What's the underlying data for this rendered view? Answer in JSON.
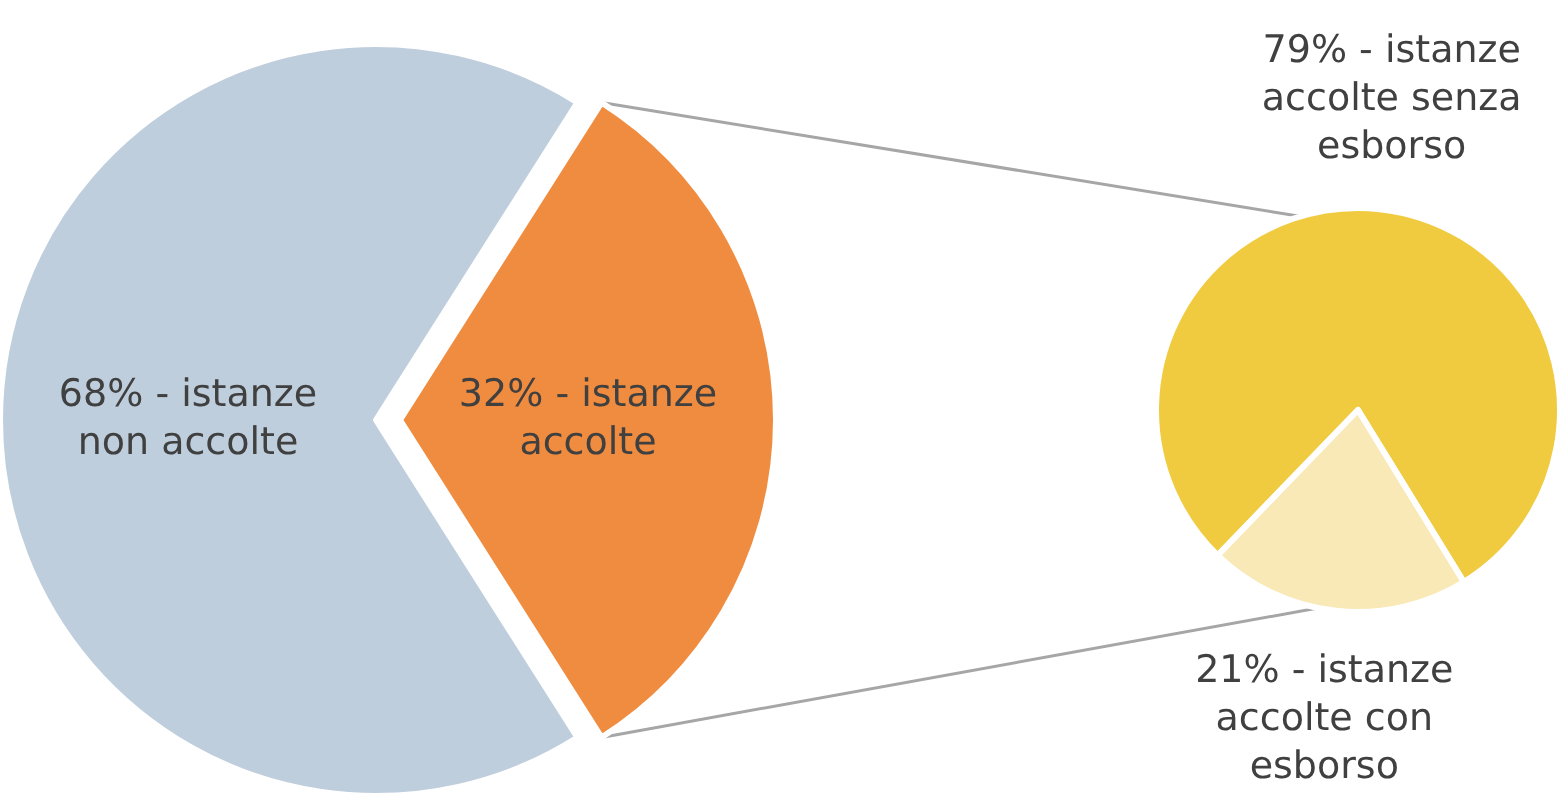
{
  "chart_data": [
    {
      "type": "pie",
      "categories": [
        "istanze non accolte",
        "istanze accolte"
      ],
      "values": [
        68,
        32
      ],
      "colors": [
        "#bfcedd",
        "#f08c3f"
      ],
      "value_labels": [
        "68% -",
        "32% -"
      ]
    },
    {
      "type": "pie",
      "categories": [
        "istanze accolte senza esborso",
        "istanze accolte con esborso"
      ],
      "values": [
        79,
        21
      ],
      "colors": [
        "#f0cb40",
        "#f8e9b6"
      ],
      "value_labels": [
        "79% -",
        "21% -"
      ]
    }
  ]
}
